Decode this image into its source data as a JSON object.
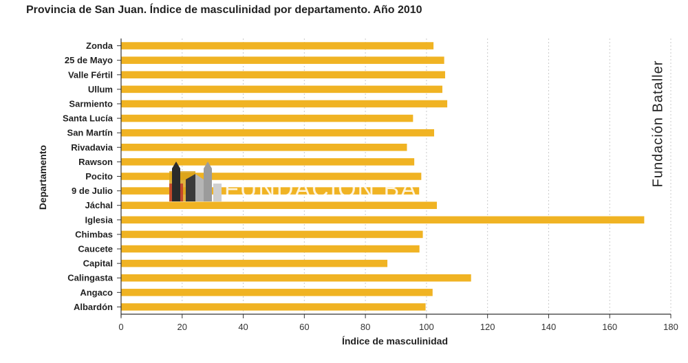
{
  "chart_data": {
    "type": "bar",
    "orientation": "horizontal",
    "title": "Provincia de San Juan. Índice de masculinidad por departamento. Año 2010",
    "xlabel": "Índice de masculinidad",
    "ylabel": "Departamento",
    "xlim": [
      0,
      180
    ],
    "xticks": [
      "0",
      "20",
      "40",
      "60",
      "80",
      "100",
      "120",
      "140",
      "160",
      "180"
    ],
    "categories": [
      "Zonda",
      "25 de Mayo",
      "Valle Fértil",
      "Ullum",
      "Sarmiento",
      "Santa Lucía",
      "San Martín",
      "Rivadavia",
      "Rawson",
      "Pocito",
      "9 de Julio",
      "Jáchal",
      "Iglesia",
      "Chimbas",
      "Caucete",
      "Capital",
      "Calingasta",
      "Angaco",
      "Albardón"
    ],
    "values": [
      102.3,
      105.8,
      106.1,
      105.2,
      106.8,
      95.6,
      102.5,
      93.6,
      96.0,
      98.3,
      97.6,
      103.4,
      171.3,
      98.8,
      97.7,
      87.2,
      114.6,
      102.0,
      99.7
    ],
    "bar_color": "#f0b323",
    "grid": "vertical-dotted",
    "legend": "none"
  },
  "watermark": {
    "side_text": "Fundación Bataller",
    "center_text": "FUNDACION BA",
    "logo_icon": "church-towers-logo-icon"
  }
}
